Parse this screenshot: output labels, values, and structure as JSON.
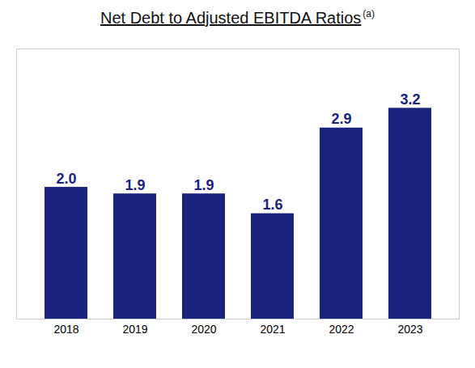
{
  "chart_data": {
    "type": "bar",
    "title": "Net Debt to Adjusted EBITDA Ratios",
    "annotations": [
      "(a)"
    ],
    "categories": [
      "2018",
      "2019",
      "2020",
      "2021",
      "2022",
      "2023"
    ],
    "values": [
      2.0,
      1.9,
      1.9,
      1.6,
      2.9,
      3.2
    ],
    "value_labels": [
      "2.0",
      "1.9",
      "1.9",
      "1.6",
      "2.9",
      "3.2"
    ],
    "color": "#1a237e",
    "ylim": [
      0,
      4.1
    ],
    "grid": false,
    "data_labels": true,
    "tick_labels": "x"
  }
}
